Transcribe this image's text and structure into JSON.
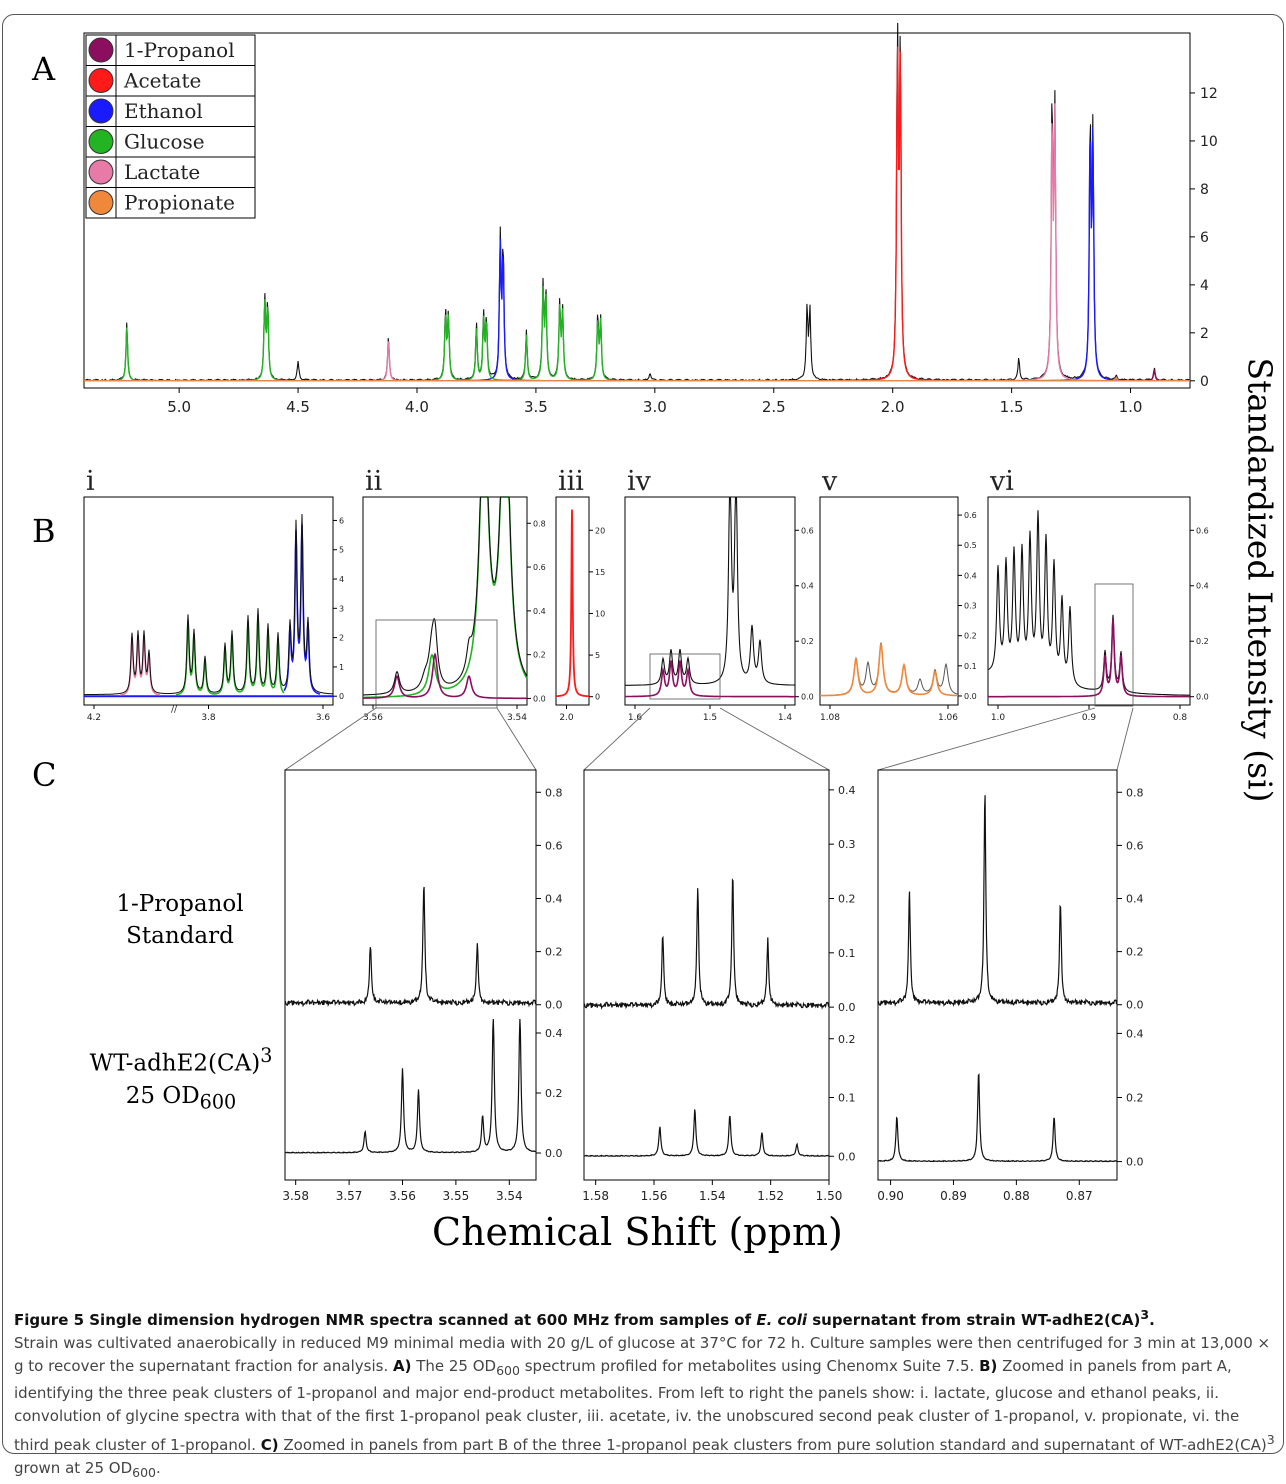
{
  "panel_letters": {
    "A": "A",
    "B": "B",
    "C": "C"
  },
  "roman": [
    "i",
    "ii",
    "iii",
    "iv",
    "v",
    "vi"
  ],
  "y_axis_label": "Standardized Intensity (si)",
  "x_axis_label": "Chemical Shift (ppm)",
  "row_labels": {
    "standard_line1": "1-Propanol",
    "standard_line2": "Standard",
    "sample_line1": "WT-adhE2(CA)",
    "sample_sup": "3",
    "sample_line2_a": "25 OD",
    "sample_line2_sub": "600"
  },
  "colors": {
    "1-Propanol": "#8b0f5e",
    "Acetate": "#ff1a1a",
    "Ethanol": "#1a1aff",
    "Glucose": "#22b422",
    "Lactate": "#e87aa8",
    "Propionate": "#f0883c",
    "spectrum": "#111111"
  },
  "caption": {
    "title": "Figure 5 Single dimension hydrogen NMR spectra scanned at 600 MHz from samples of ",
    "title_italic": "E. coli",
    "title_end": " supernatant from strain WT-adhE2(CA)",
    "title_sup": "3",
    "body1": "Strain was cultivated anaerobically in reduced M9 minimal media with 20 g/L of glucose at 37°C for 72 h. Culture samples were then centrifuged for 3 min at 13,000 × g to recover the supernatant fraction for analysis. ",
    "a_label": "A)",
    "a_text1": " The 25 OD",
    "a_sub": "600",
    "a_text2": " spectrum profiled for metabolites using Chenomx Suite 7.5. ",
    "b_label": "B)",
    "b_text": " Zoomed in panels from part A, identifying the three peak clusters of 1-propanol and major end-product metabolites. From left to right the panels show: i. lactate, glucose and ethanol peaks, ii. convolution of glycine spectra with that of the first 1-propanol peak cluster, iii. acetate, iv. the unobscured second peak cluster of 1-propanol, v. propionate, vi. the third peak cluster of 1-propanol. ",
    "c_label": "C)",
    "c_text1": " Zoomed in panels from part B of the three 1-propanol peak clusters from pure solution standard and supernatant of WT-adhE2(CA)",
    "c_sup": "3",
    "c_text2": " grown at 25 OD",
    "c_sub": "600",
    "c_end": "."
  },
  "chart_data": [
    {
      "id": "A",
      "type": "line",
      "title": "",
      "legend": [
        "1-Propanol",
        "Acetate",
        "Ethanol",
        "Glucose",
        "Lactate",
        "Propionate"
      ],
      "legend_position": "top-left",
      "xlim": [
        5.4,
        0.75
      ],
      "ylim": [
        -0.3,
        14.5
      ],
      "xticks": [
        "5.0",
        "4.5",
        "4.0",
        "3.5",
        "3.0",
        "2.5",
        "2.0",
        "1.5",
        "1.0"
      ],
      "yticks": [
        "0",
        "2",
        "4",
        "6",
        "8",
        "10",
        "12"
      ],
      "peaks": [
        {
          "ppm": 5.22,
          "h": 2.4,
          "s": "Glucose"
        },
        {
          "ppm": 4.64,
          "h": 3.3,
          "s": "Glucose"
        },
        {
          "ppm": 4.5,
          "h": 0.8,
          "s": "spectrum"
        },
        {
          "ppm": 4.12,
          "h": 1.9,
          "s": "Lactate"
        },
        {
          "ppm": 3.88,
          "h": 2.8,
          "s": "Glucose"
        },
        {
          "ppm": 3.75,
          "h": 2.3,
          "s": "Glucose"
        },
        {
          "ppm": 3.72,
          "h": 2.6,
          "s": "Glucose"
        },
        {
          "ppm": 3.65,
          "h": 5.7,
          "s": "Ethanol"
        },
        {
          "ppm": 3.54,
          "h": 2.0,
          "s": "Glucose"
        },
        {
          "ppm": 3.47,
          "h": 3.8,
          "s": "Glucose"
        },
        {
          "ppm": 3.4,
          "h": 3.1,
          "s": "Glucose"
        },
        {
          "ppm": 3.24,
          "h": 2.6,
          "s": "Glucose"
        },
        {
          "ppm": 3.02,
          "h": 0.3,
          "s": "spectrum"
        },
        {
          "ppm": 2.36,
          "h": 3.0,
          "s": "spectrum"
        },
        {
          "ppm": 1.98,
          "h": 14.0,
          "s": "Acetate"
        },
        {
          "ppm": 1.47,
          "h": 0.9,
          "s": "spectrum"
        },
        {
          "ppm": 1.33,
          "h": 11.4,
          "s": "Lactate"
        },
        {
          "ppm": 1.17,
          "h": 10.5,
          "s": "Ethanol"
        },
        {
          "ppm": 1.06,
          "h": 0.15,
          "s": "Propionate"
        },
        {
          "ppm": 0.9,
          "h": 0.5,
          "s": "1-Propanol"
        }
      ]
    },
    {
      "id": "B-i",
      "type": "line",
      "title": "",
      "xticks": [
        "4.2",
        "3.8",
        "3.6"
      ],
      "yticks": [
        "0",
        "1",
        "2",
        "3",
        "4",
        "5",
        "6"
      ],
      "ylim": [
        -0.3,
        6.8
      ],
      "species": [
        "Lactate",
        "Glucose",
        "Ethanol"
      ]
    },
    {
      "id": "B-ii",
      "type": "line",
      "title": "",
      "xticks": [
        "3.56",
        "3.54"
      ],
      "yticks": [
        "0.0",
        "0.2",
        "0.4",
        "0.6",
        "0.8"
      ],
      "ylim": [
        -0.03,
        0.92
      ],
      "species": [
        "Glucose",
        "1-Propanol"
      ]
    },
    {
      "id": "B-iii",
      "type": "line",
      "title": "",
      "xticks": [
        "2.0"
      ],
      "yticks": [
        "0",
        "5",
        "10",
        "15",
        "20"
      ],
      "ylim": [
        -1,
        24
      ],
      "species": [
        "Acetate"
      ]
    },
    {
      "id": "B-iv",
      "type": "line",
      "title": "",
      "xticks": [
        "1.6",
        "1.5",
        "1.4"
      ],
      "yticks": [
        "0.0",
        "0.2",
        "0.4",
        "0.6"
      ],
      "ylim": [
        -0.03,
        0.72
      ],
      "species": [
        "1-Propanol"
      ]
    },
    {
      "id": "B-v",
      "type": "line",
      "title": "",
      "xticks": [
        "1.08",
        "1.06"
      ],
      "yticks": [
        "0.0",
        "0.1",
        "0.2",
        "0.3",
        "0.4",
        "0.5",
        "0.6"
      ],
      "ylim": [
        -0.03,
        0.66
      ],
      "species": [
        "Propionate"
      ]
    },
    {
      "id": "B-vi",
      "type": "line",
      "title": "",
      "xticks": [
        "1.0",
        "0.9",
        "0.8"
      ],
      "yticks": [
        "0.0",
        "0.2",
        "0.4",
        "0.6"
      ],
      "ylim": [
        -0.03,
        0.72
      ],
      "species": [
        "1-Propanol"
      ]
    },
    {
      "id": "C-1",
      "type": "line",
      "title": "",
      "xticks": [
        "3.58",
        "3.57",
        "3.56",
        "3.55",
        "3.54"
      ],
      "standard_yticks": [
        "0.0",
        "0.2",
        "0.4",
        "0.6",
        "0.8"
      ],
      "standard_ylim": [
        -0.05,
        0.85
      ],
      "sample_yticks": [
        "0.0",
        "0.2",
        "0.4"
      ],
      "sample_ylim": [
        -0.05,
        0.42
      ],
      "standard_peaks": [
        {
          "ppm": 3.566,
          "h": 0.22
        },
        {
          "ppm": 3.556,
          "h": 0.45
        },
        {
          "ppm": 3.546,
          "h": 0.22
        }
      ],
      "sample_peaks": [
        {
          "ppm": 3.567,
          "h": 0.07
        },
        {
          "ppm": 3.56,
          "h": 0.28
        },
        {
          "ppm": 3.557,
          "h": 0.21
        },
        {
          "ppm": 3.545,
          "h": 0.12
        },
        {
          "ppm": 3.543,
          "h": 0.46
        },
        {
          "ppm": 3.538,
          "h": 0.46
        }
      ]
    },
    {
      "id": "C-2",
      "type": "line",
      "title": "",
      "xticks": [
        "1.58",
        "1.56",
        "1.54",
        "1.52",
        "1.50"
      ],
      "standard_yticks": [
        "0.0",
        "0.1",
        "0.2",
        "0.3",
        "0.4"
      ],
      "standard_ylim": [
        -0.02,
        0.42
      ],
      "sample_yticks": [
        "0.0",
        "0.1",
        "0.2"
      ],
      "sample_ylim": [
        -0.02,
        0.22
      ],
      "standard_peaks": [
        {
          "ppm": 1.557,
          "h": 0.13
        },
        {
          "ppm": 1.545,
          "h": 0.22
        },
        {
          "ppm": 1.533,
          "h": 0.24
        },
        {
          "ppm": 1.521,
          "h": 0.12
        }
      ],
      "sample_peaks": [
        {
          "ppm": 1.558,
          "h": 0.05
        },
        {
          "ppm": 1.546,
          "h": 0.08
        },
        {
          "ppm": 1.534,
          "h": 0.07
        },
        {
          "ppm": 1.523,
          "h": 0.04
        },
        {
          "ppm": 1.511,
          "h": 0.02
        }
      ]
    },
    {
      "id": "C-3",
      "type": "line",
      "title": "",
      "xticks": [
        "0.90",
        "0.89",
        "0.88",
        "0.87"
      ],
      "standard_yticks": [
        "0.0",
        "0.2",
        "0.4",
        "0.6",
        "0.8"
      ],
      "standard_ylim": [
        -0.05,
        0.85
      ],
      "sample_yticks": [
        "0.0",
        "0.2",
        "0.4"
      ],
      "sample_ylim": [
        -0.02,
        0.42
      ],
      "standard_peaks": [
        {
          "ppm": 0.897,
          "h": 0.42
        },
        {
          "ppm": 0.885,
          "h": 0.8
        },
        {
          "ppm": 0.873,
          "h": 0.38
        }
      ],
      "sample_peaks": [
        {
          "ppm": 0.899,
          "h": 0.14
        },
        {
          "ppm": 0.886,
          "h": 0.28
        },
        {
          "ppm": 0.874,
          "h": 0.14
        }
      ]
    }
  ]
}
